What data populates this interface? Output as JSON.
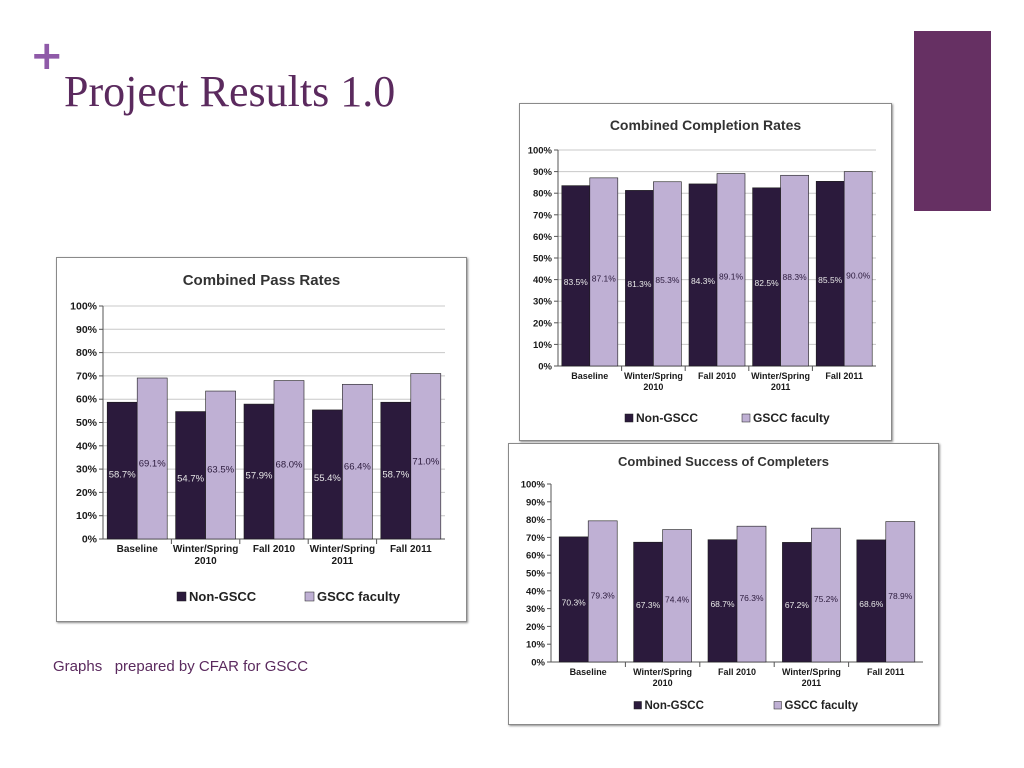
{
  "slide": {
    "marker": "+",
    "title": "Project Results 1.0",
    "footnote": "Graphs   prepared by CFAR for GSCC",
    "accent_color": "#663063"
  },
  "colors": {
    "non_gscc": "#2b1a3c",
    "gscc_faculty": "#bfb0d4",
    "gridline": "#c8c8c8",
    "axis_text": "#1a1a1a"
  },
  "chart_data": [
    {
      "type": "bar",
      "title": "Combined Completion Rates",
      "categories": [
        "Baseline",
        "Winter/Spring\n2010",
        "Fall 2010",
        "Winter/Spring\n2011",
        "Fall 2011"
      ],
      "series": [
        {
          "name": "Non-GSCC",
          "values": [
            83.5,
            81.3,
            84.3,
            82.5,
            85.5
          ],
          "labels": [
            "83.5%",
            "81.3%",
            "84.3%",
            "82.5%",
            "85.5%"
          ]
        },
        {
          "name": "GSCC faculty",
          "values": [
            87.1,
            85.3,
            89.1,
            88.3,
            90.0
          ],
          "labels": [
            "87.1%",
            "85.3%",
            "89.1%",
            "88.3%",
            "90.0%"
          ]
        }
      ],
      "yticks": [
        "0%",
        "10%",
        "20%",
        "30%",
        "40%",
        "50%",
        "60%",
        "70%",
        "80%",
        "90%",
        "100%"
      ],
      "ylim": [
        0,
        100
      ],
      "grid": true,
      "legend": "bottom"
    },
    {
      "type": "bar",
      "title": "Combined Pass Rates",
      "categories": [
        "Baseline",
        "Winter/Spring\n2010",
        "Fall 2010",
        "Winter/Spring\n2011",
        "Fall 2011"
      ],
      "series": [
        {
          "name": "Non-GSCC",
          "values": [
            58.7,
            54.7,
            57.9,
            55.4,
            58.7
          ],
          "labels": [
            "58.7%",
            "54.7%",
            "57.9%",
            "55.4%",
            "58.7%"
          ]
        },
        {
          "name": "GSCC faculty",
          "values": [
            69.1,
            63.5,
            68.0,
            66.4,
            71.0
          ],
          "labels": [
            "69.1%",
            "63.5%",
            "68.0%",
            "66.4%",
            "71.0%"
          ]
        }
      ],
      "yticks": [
        "0%",
        "10%",
        "20%",
        "30%",
        "40%",
        "50%",
        "60%",
        "70%",
        "80%",
        "90%",
        "100%"
      ],
      "ylim": [
        0,
        100
      ],
      "grid": true,
      "legend": "bottom"
    },
    {
      "type": "bar",
      "title": "Combined Success of Completers",
      "categories": [
        "Baseline",
        "Winter/Spring\n2010",
        "Fall 2010",
        "Winter/Spring\n2011",
        "Fall 2011"
      ],
      "series": [
        {
          "name": "Non-GSCC",
          "values": [
            70.3,
            67.3,
            68.7,
            67.2,
            68.6
          ],
          "labels": [
            "70.3%",
            "67.3%",
            "68.7%",
            "67.2%",
            "68.6%"
          ]
        },
        {
          "name": "GSCC faculty",
          "values": [
            79.3,
            74.4,
            76.3,
            75.2,
            78.9
          ],
          "labels": [
            "79.3%",
            "74.4%",
            "76.3%",
            "75.2%",
            "78.9%"
          ]
        }
      ],
      "yticks": [
        "0%",
        "10%",
        "20%",
        "30%",
        "40%",
        "50%",
        "60%",
        "70%",
        "80%",
        "90%",
        "100%"
      ],
      "ylim": [
        0,
        100
      ],
      "grid": false,
      "legend": "bottom"
    }
  ]
}
